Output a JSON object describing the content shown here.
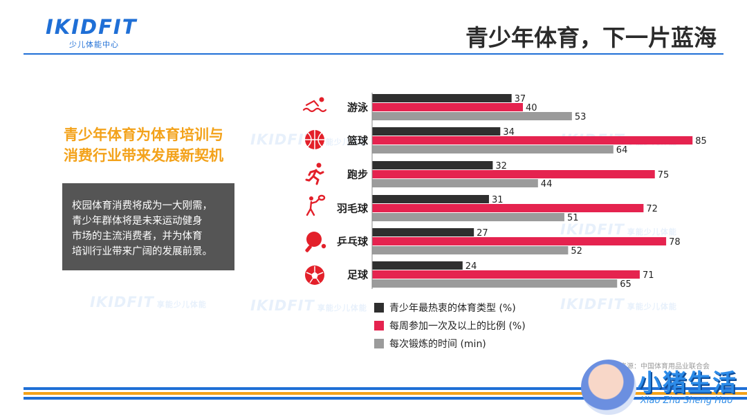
{
  "header": {
    "logo_text": "IKIDFIT",
    "logo_sub": "少儿体能中心",
    "title": "青少年体育，下一片蓝海"
  },
  "left": {
    "subtitle_line1": "青少年体育为体育培训与",
    "subtitle_line2": "消费行业带来发展新契机",
    "desc_lines": [
      "校园体育消费将成为一大刚需，",
      "青少年群体将是未来运动健身",
      "市场的主流消费者，并为体育",
      "培训行业带来广阔的发展前景。"
    ]
  },
  "watermark": {
    "text": "IKIDFIT",
    "sub": "享能少儿体能"
  },
  "source": "数据来源：中国体育用品业联合会",
  "brand": {
    "name": "小猪生活",
    "pinyin": "Xiao Zhu Sheng Huo"
  },
  "colors": {
    "accent_blue": "#1f6fd6",
    "accent_orange": "#f3a21a",
    "series_dark": "#2f2f2f",
    "series_red": "#e5234f",
    "series_gray": "#9b9b9b",
    "icon_red": "#e3202a"
  },
  "icons": [
    "swimming-icon",
    "basketball-icon",
    "running-icon",
    "badminton-icon",
    "ping-pong-icon",
    "soccer-ball-icon"
  ],
  "chart_data": {
    "type": "bar",
    "orientation": "horizontal",
    "categories": [
      "游泳",
      "篮球",
      "跑步",
      "羽毛球",
      "乒乓球",
      "足球"
    ],
    "series": [
      {
        "name": "青少年最热衷的体育类型 (%)",
        "values": [
          37,
          34,
          32,
          31,
          27,
          24
        ],
        "color": "#2f2f2f"
      },
      {
        "name": "每周参加一次及以上的比例 (%)",
        "values": [
          40,
          85,
          75,
          72,
          78,
          71
        ],
        "color": "#e5234f"
      },
      {
        "name": "每次锻炼的时间 (min)",
        "values": [
          53,
          64,
          44,
          51,
          52,
          65
        ],
        "color": "#9b9b9b"
      }
    ],
    "xlim": [
      0,
      85
    ],
    "grid": false,
    "legend_position": "bottom"
  }
}
